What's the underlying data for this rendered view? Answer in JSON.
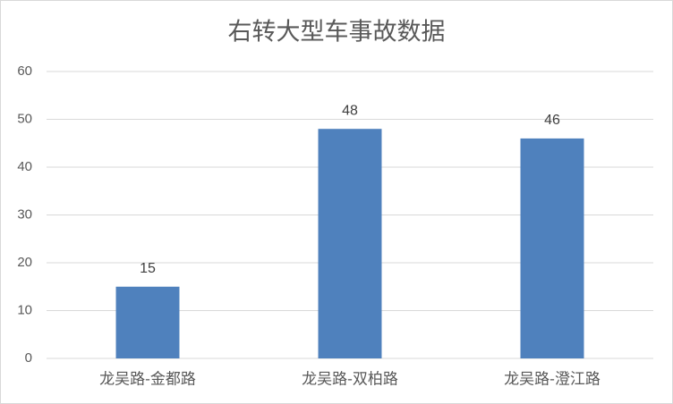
{
  "chart_data": {
    "type": "bar",
    "title": "右转大型车事故数据",
    "categories": [
      "龙吴路-金都路",
      "龙吴路-双柏路",
      "龙吴路-澄江路"
    ],
    "values": [
      15,
      48,
      46
    ],
    "color": "#4f81bd",
    "ylim": [
      0,
      60
    ],
    "yticks": [
      0,
      10,
      20,
      30,
      40,
      50,
      60
    ],
    "grid": true,
    "data_labels": true
  }
}
